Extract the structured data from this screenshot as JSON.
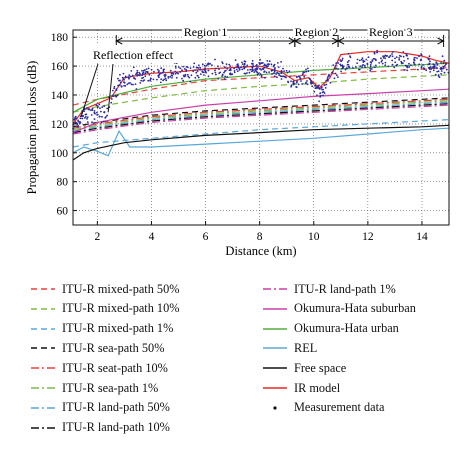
{
  "chart_data": {
    "type": "line",
    "xlabel": "Distance (km)",
    "ylabel": "Propagation path loss (dB)",
    "xlim": [
      1.1,
      15.0
    ],
    "ylim": [
      50,
      185
    ],
    "xticks": [
      "2",
      "4",
      "6",
      "8",
      "10",
      "12",
      "14"
    ],
    "xtick_values": [
      2,
      4,
      6,
      8,
      10,
      12,
      14
    ],
    "yticks": [
      "60",
      "80",
      "100",
      "120",
      "140",
      "160",
      "180"
    ],
    "ytick_values": [
      60,
      80,
      100,
      120,
      140,
      160,
      180
    ],
    "grid": true,
    "regions": [
      {
        "label": "Region 1",
        "x_start": 2.7,
        "x_end": 9.3
      },
      {
        "label": "Region 2",
        "x_start": 9.3,
        "x_end": 10.9
      },
      {
        "label": "Region 3",
        "x_start": 10.9,
        "x_end": 14.8
      }
    ],
    "annotation": "Reflection effect",
    "series": [
      {
        "name": "ITU-R mixed-path 50%",
        "color": "#e8413c",
        "dash": "6,4",
        "x": [
          1.1,
          2,
          4,
          6,
          8,
          10,
          12,
          14,
          15
        ],
        "y": [
          133,
          137,
          144,
          150,
          152,
          154,
          156,
          158,
          159
        ]
      },
      {
        "name": "ITU-R mixed-path 10%",
        "color": "#7dbb42",
        "dash": "6,4",
        "x": [
          1.1,
          2,
          4,
          6,
          8,
          10,
          12,
          14,
          15
        ],
        "y": [
          128,
          132,
          138,
          143,
          146,
          148,
          151,
          153,
          154
        ]
      },
      {
        "name": "ITU-R mixed-path 1%",
        "color": "#5aa8d8",
        "dash": "6,4",
        "x": [
          1.1,
          2,
          4,
          6,
          8,
          10,
          12,
          14,
          15
        ],
        "y": [
          104,
          107,
          110,
          113,
          116,
          118,
          120,
          122,
          123
        ]
      },
      {
        "name": "ITU-R sea-path 50%",
        "color": "#111111",
        "dash": "6,4",
        "x": [
          1.1,
          2,
          4,
          6,
          8,
          10,
          12,
          14,
          15
        ],
        "y": [
          118,
          121,
          126,
          129,
          131,
          133,
          135,
          137,
          138
        ]
      },
      {
        "name": "ITU-R seat-path 10%",
        "color": "#e8413c",
        "dash": "8,3,2,3",
        "x": [
          1.1,
          2,
          4,
          6,
          8,
          10,
          12,
          14,
          15
        ],
        "y": [
          117,
          120,
          125,
          128,
          130,
          132,
          134,
          136,
          137
        ]
      },
      {
        "name": "ITU-R sea-path 1%",
        "color": "#7dbb42",
        "dash": "8,3,2,3",
        "x": [
          1.1,
          2,
          4,
          6,
          8,
          10,
          12,
          14,
          15
        ],
        "y": [
          116,
          119,
          124,
          127,
          129,
          131,
          133,
          135,
          136
        ]
      },
      {
        "name": "ITU-R land-path 50%",
        "color": "#5aa8d8",
        "dash": "8,3,2,3",
        "x": [
          1.1,
          2,
          4,
          6,
          8,
          10,
          12,
          14,
          15
        ],
        "y": [
          115,
          118,
          123,
          126,
          128,
          130,
          132,
          134,
          135
        ]
      },
      {
        "name": "ITU-R land-path 10%",
        "color": "#111111",
        "dash": "8,3,2,3",
        "x": [
          1.1,
          2,
          4,
          6,
          8,
          10,
          12,
          14,
          15
        ],
        "y": [
          114,
          117,
          122,
          125,
          127,
          129,
          131,
          133,
          134
        ]
      },
      {
        "name": "ITU-R land-path 1%",
        "color": "#cc3fa8",
        "dash": "8,3,2,3",
        "x": [
          1.1,
          2,
          4,
          6,
          8,
          10,
          12,
          14,
          15
        ],
        "y": [
          113,
          116,
          121,
          124,
          126,
          128,
          130,
          132,
          133
        ]
      },
      {
        "name": "Okumura-Hata suburban",
        "color": "#cc3fa8",
        "dash": "",
        "x": [
          1.1,
          2,
          4,
          6,
          8,
          10,
          12,
          14,
          15
        ],
        "y": [
          114,
          121,
          128,
          133,
          136,
          139,
          141,
          143,
          144
        ]
      },
      {
        "name": "Okumura-Hata urban",
        "color": "#4fae3a",
        "dash": "",
        "x": [
          1.1,
          2,
          4,
          6,
          8,
          10,
          12,
          14,
          15
        ],
        "y": [
          128,
          137,
          146,
          151,
          154,
          157,
          159,
          161,
          162
        ]
      },
      {
        "name": "REL",
        "color": "#5aa8d8",
        "dash": "",
        "x": [
          1.1,
          1.5,
          2,
          2.4,
          2.8,
          3.2,
          4,
          6,
          8,
          10,
          12,
          14,
          15
        ],
        "y": [
          100,
          104,
          101,
          98,
          115,
          104,
          104,
          106,
          108,
          110,
          113,
          116,
          117
        ]
      },
      {
        "name": "Free space",
        "color": "#111111",
        "dash": "",
        "x": [
          1.1,
          1.5,
          2,
          3,
          4,
          6,
          8,
          10,
          12,
          14,
          15
        ],
        "y": [
          95,
          100,
          103,
          107,
          109,
          112,
          114,
          116,
          117,
          118,
          119
        ]
      },
      {
        "name": "IR model",
        "color": "#e8281e",
        "dash": "",
        "x": [
          1.1,
          1.5,
          2,
          2.5,
          3,
          4,
          5,
          6,
          7,
          8,
          8.8,
          9.3,
          9.8,
          10.2,
          10.6,
          11,
          12,
          13,
          14,
          14.5,
          15
        ],
        "y": [
          120,
          130,
          134,
          138,
          152,
          155,
          156,
          158,
          159,
          160,
          156,
          150,
          152,
          145,
          152,
          168,
          170,
          170,
          167,
          164,
          162
        ]
      }
    ],
    "measurement": {
      "name": "Measurement data",
      "color": "#2a2aa0",
      "trend_x": [
        1.1,
        1.5,
        2,
        2.3,
        2.6,
        3,
        4,
        5,
        6,
        7,
        8,
        8.8,
        9.3,
        9.7,
        10,
        10.3,
        10.6,
        11,
        12,
        13,
        14,
        14.5,
        15
      ],
      "trend_y": [
        120,
        126,
        130,
        126,
        142,
        151,
        154,
        156,
        158,
        158,
        159,
        156,
        148,
        155,
        146,
        142,
        152,
        161,
        164,
        164,
        163,
        160,
        158
      ]
    }
  },
  "legend": {
    "left": [
      "ITU-R mixed-path 50%",
      "ITU-R mixed-path 10%",
      "ITU-R mixed-path 1%",
      "ITU-R sea-path 50%",
      "ITU-R seat-path 10%",
      "ITU-R sea-path 1%",
      "ITU-R land-path 50%",
      "ITU-R land-path 10%"
    ],
    "right": [
      "ITU-R land-path 1%",
      "Okumura-Hata suburban",
      "Okumura-Hata urban",
      "REL",
      "Free space",
      "IR model",
      "Measurement data"
    ]
  }
}
